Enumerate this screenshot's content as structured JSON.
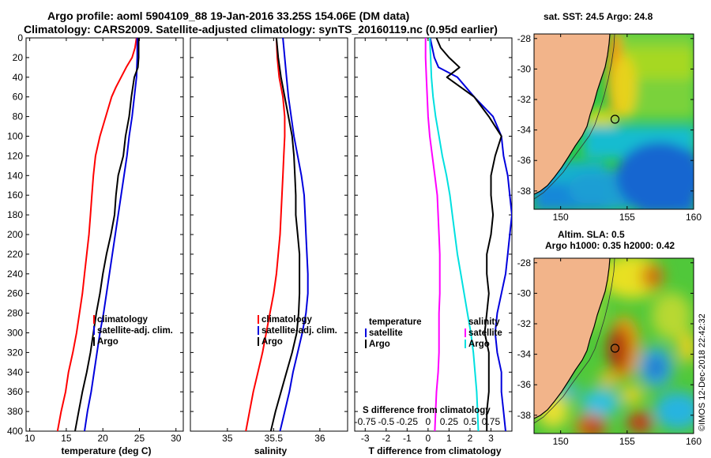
{
  "title": {
    "line1": "Argo profile: aoml 5904109_88 19-Jan-2016 33.25S 154.06E (DM data)",
    "line2": "Climatology: CARS2009. Satellite-adjusted climatology: synTS_20160119.nc (0.95d earlier)"
  },
  "colors": {
    "climatology": "#ff0000",
    "satellite": "#0000dd",
    "argo": "#000000",
    "s_diff": "#ff00ff",
    "t_diff": "#00e0e0",
    "land": "#f2b48a"
  },
  "depth_axis": {
    "ticks": [
      "0",
      "20",
      "40",
      "60",
      "80",
      "100",
      "120",
      "140",
      "160",
      "180",
      "200",
      "220",
      "240",
      "260",
      "280",
      "300",
      "320",
      "340",
      "360",
      "380",
      "400"
    ]
  },
  "chart_data": [
    {
      "type": "line",
      "name": "temperature",
      "xlabel": "temperature (deg C)",
      "xlim": [
        9.5,
        31
      ],
      "xticks": [
        "10",
        "15",
        "20",
        "25",
        "30"
      ],
      "ylim": [
        0,
        400
      ],
      "legend": [
        "climatology",
        "satellite-adj. clim.",
        "Argo"
      ],
      "series": [
        {
          "name": "climatology",
          "color": "#ff0000",
          "depth": [
            0,
            10,
            20,
            30,
            40,
            50,
            60,
            70,
            80,
            90,
            100,
            120,
            140,
            160,
            180,
            200,
            220,
            240,
            260,
            280,
            300,
            320,
            340,
            360,
            380,
            400
          ],
          "values": [
            24.6,
            24.4,
            24.0,
            23.2,
            22.5,
            21.8,
            21.2,
            20.8,
            20.4,
            20.0,
            19.6,
            19.0,
            18.7,
            18.5,
            18.3,
            18.1,
            17.8,
            17.5,
            17.2,
            16.8,
            16.4,
            15.9,
            15.3,
            14.9,
            14.3,
            13.8
          ]
        },
        {
          "name": "satellite-adj. clim.",
          "color": "#0000dd",
          "depth": [
            0,
            20,
            40,
            60,
            80,
            100,
            120,
            140,
            160,
            180,
            200,
            220,
            240,
            260,
            280,
            300,
            320,
            340,
            360,
            380,
            400
          ],
          "values": [
            24.7,
            24.7,
            24.6,
            24.3,
            24.0,
            23.6,
            23.3,
            22.9,
            22.5,
            22.1,
            21.7,
            21.3,
            20.9,
            20.5,
            20.1,
            19.6,
            19.2,
            18.8,
            18.4,
            17.9,
            17.5
          ]
        },
        {
          "name": "Argo",
          "color": "#000000",
          "depth": [
            0,
            20,
            30,
            40,
            60,
            80,
            100,
            120,
            140,
            160,
            180,
            200,
            220,
            240,
            260,
            280,
            300,
            320,
            340,
            360,
            380,
            400
          ],
          "values": [
            24.9,
            24.9,
            24.8,
            24.3,
            23.9,
            23.6,
            23.1,
            22.8,
            22.1,
            21.8,
            21.6,
            21.1,
            20.5,
            20.0,
            19.6,
            19.1,
            18.7,
            18.3,
            17.8,
            17.2,
            16.7,
            16.2
          ]
        }
      ]
    },
    {
      "type": "line",
      "name": "salinity",
      "xlabel": "salinity",
      "xlim": [
        34.6,
        36.3
      ],
      "xticks": [
        "35",
        "35.5",
        "36"
      ],
      "ylim": [
        0,
        400
      ],
      "legend": [
        "climatology",
        "satellite-adj. clim.",
        "Argo"
      ],
      "series": [
        {
          "name": "climatology",
          "color": "#ff0000",
          "depth": [
            0,
            20,
            40,
            60,
            80,
            100,
            120,
            140,
            160,
            180,
            200,
            220,
            240,
            260,
            280,
            300,
            320,
            340,
            360,
            380,
            400
          ],
          "values": [
            35.53,
            35.54,
            35.56,
            35.6,
            35.62,
            35.62,
            35.61,
            35.6,
            35.59,
            35.58,
            35.57,
            35.55,
            35.53,
            35.5,
            35.46,
            35.42,
            35.38,
            35.33,
            35.28,
            35.24,
            35.2
          ]
        },
        {
          "name": "satellite-adj. clim.",
          "color": "#0000dd",
          "depth": [
            0,
            20,
            40,
            60,
            80,
            100,
            120,
            140,
            160,
            180,
            200,
            220,
            240,
            260,
            280,
            300,
            320,
            340,
            360,
            380,
            400
          ],
          "values": [
            35.6,
            35.62,
            35.64,
            35.66,
            35.69,
            35.72,
            35.76,
            35.8,
            35.83,
            35.84,
            35.85,
            35.86,
            35.87,
            35.87,
            35.85,
            35.81,
            35.76,
            35.71,
            35.67,
            35.62,
            35.57
          ]
        },
        {
          "name": "Argo",
          "color": "#000000",
          "depth": [
            0,
            20,
            40,
            60,
            80,
            100,
            120,
            140,
            160,
            180,
            200,
            220,
            240,
            260,
            280,
            300,
            320,
            340,
            360,
            380,
            400
          ],
          "values": [
            35.53,
            35.55,
            35.58,
            35.62,
            35.66,
            35.7,
            35.72,
            35.73,
            35.74,
            35.74,
            35.76,
            35.78,
            35.78,
            35.78,
            35.77,
            35.75,
            35.7,
            35.64,
            35.58,
            35.52,
            35.47
          ]
        }
      ]
    },
    {
      "type": "line",
      "name": "differences",
      "xlabel": "T difference from climatology",
      "xlabel_top": "S difference from climatology",
      "xlim": [
        -3.5,
        4
      ],
      "xticks": [
        "-3",
        "-2",
        "-1",
        "0",
        "1",
        "2",
        "3"
      ],
      "s_ticks": [
        "-0.75",
        "-0.5",
        "-0.25",
        "0",
        "0.25",
        "0.5",
        "0.75"
      ],
      "ylim": [
        0,
        400
      ],
      "legend_left": {
        "title": "temperature",
        "items": [
          "satellite",
          "Argo"
        ]
      },
      "legend_right": {
        "title": "salinity",
        "items": [
          "satellite",
          "Argo"
        ]
      },
      "series": [
        {
          "name": "T satellite",
          "color": "#0000dd",
          "depth": [
            0,
            20,
            30,
            40,
            60,
            80,
            100,
            120,
            140,
            160,
            180,
            200,
            220,
            240,
            260,
            280,
            300,
            320,
            340,
            360,
            380,
            400
          ],
          "values": [
            0.1,
            0.3,
            0.5,
            1.4,
            2.2,
            3.1,
            3.5,
            3.6,
            3.8,
            3.9,
            4.0,
            3.9,
            3.8,
            3.7,
            3.5,
            3.3,
            3.2,
            3.3,
            3.5,
            3.5,
            3.6,
            3.7
          ]
        },
        {
          "name": "T Argo",
          "color": "#000000",
          "depth": [
            0,
            10,
            20,
            30,
            40,
            60,
            80,
            100,
            120,
            140,
            160,
            180,
            200,
            220,
            240,
            260,
            280,
            300,
            320,
            340,
            360,
            380,
            400
          ],
          "values": [
            0.4,
            0.6,
            1.0,
            1.5,
            0.9,
            2.2,
            2.9,
            3.5,
            3.2,
            3.0,
            3.0,
            3.1,
            3.0,
            2.8,
            2.8,
            2.9,
            2.8,
            2.7,
            2.9,
            2.9,
            2.9,
            2.8,
            2.8
          ]
        },
        {
          "name": "S satellite",
          "color": "#ff00ff",
          "depth": [
            0,
            20,
            40,
            60,
            80,
            100,
            120,
            140,
            160,
            180,
            200,
            220,
            240,
            260,
            280,
            300,
            320,
            340,
            360,
            380,
            400
          ],
          "values": [
            -0.03,
            -0.03,
            -0.02,
            -0.01,
            0.0,
            0.02,
            0.05,
            0.08,
            0.11,
            0.12,
            0.13,
            0.14,
            0.14,
            0.14,
            0.13,
            0.13,
            0.13,
            0.12,
            0.1,
            0.09,
            0.08
          ]
        },
        {
          "name": "S Argo",
          "color": "#00e0e0",
          "depth": [
            0,
            20,
            40,
            60,
            80,
            100,
            120,
            140,
            160,
            180,
            200,
            220,
            240,
            260,
            280,
            300,
            320,
            340,
            360,
            380,
            400
          ],
          "values": [
            0.02,
            0.03,
            0.04,
            0.06,
            0.09,
            0.13,
            0.17,
            0.22,
            0.26,
            0.29,
            0.32,
            0.35,
            0.39,
            0.43,
            0.47,
            0.51,
            0.54,
            0.56,
            0.58,
            0.59,
            0.6
          ]
        }
      ]
    },
    {
      "type": "heatmap",
      "name": "sst-map",
      "title": "sat. SST: 24.5 Argo: 24.8",
      "xticks": [
        "150",
        "155",
        "160"
      ],
      "yticks": [
        "-28",
        "-30",
        "-32",
        "-34",
        "-36",
        "-38"
      ],
      "xlim": [
        148,
        160
      ],
      "ylim": [
        -39.2,
        -27.7
      ],
      "argo_location": {
        "lon": 154.06,
        "lat": -33.25
      }
    },
    {
      "type": "heatmap",
      "name": "sla-map",
      "title": "Altim. SLA: 0.5",
      "subtitle": "Argo h1000: 0.35 h2000: 0.42",
      "xticks": [
        "150",
        "155",
        "160"
      ],
      "yticks": [
        "-28",
        "-30",
        "-32",
        "-34",
        "-36",
        "-38"
      ],
      "xlim": [
        148,
        160
      ],
      "ylim": [
        -39.2,
        -27.7
      ],
      "argo_location": {
        "lon": 154.06,
        "lat": -33.25
      }
    }
  ],
  "credit": "©IMOS 12-Dec-2018 22:42:32"
}
